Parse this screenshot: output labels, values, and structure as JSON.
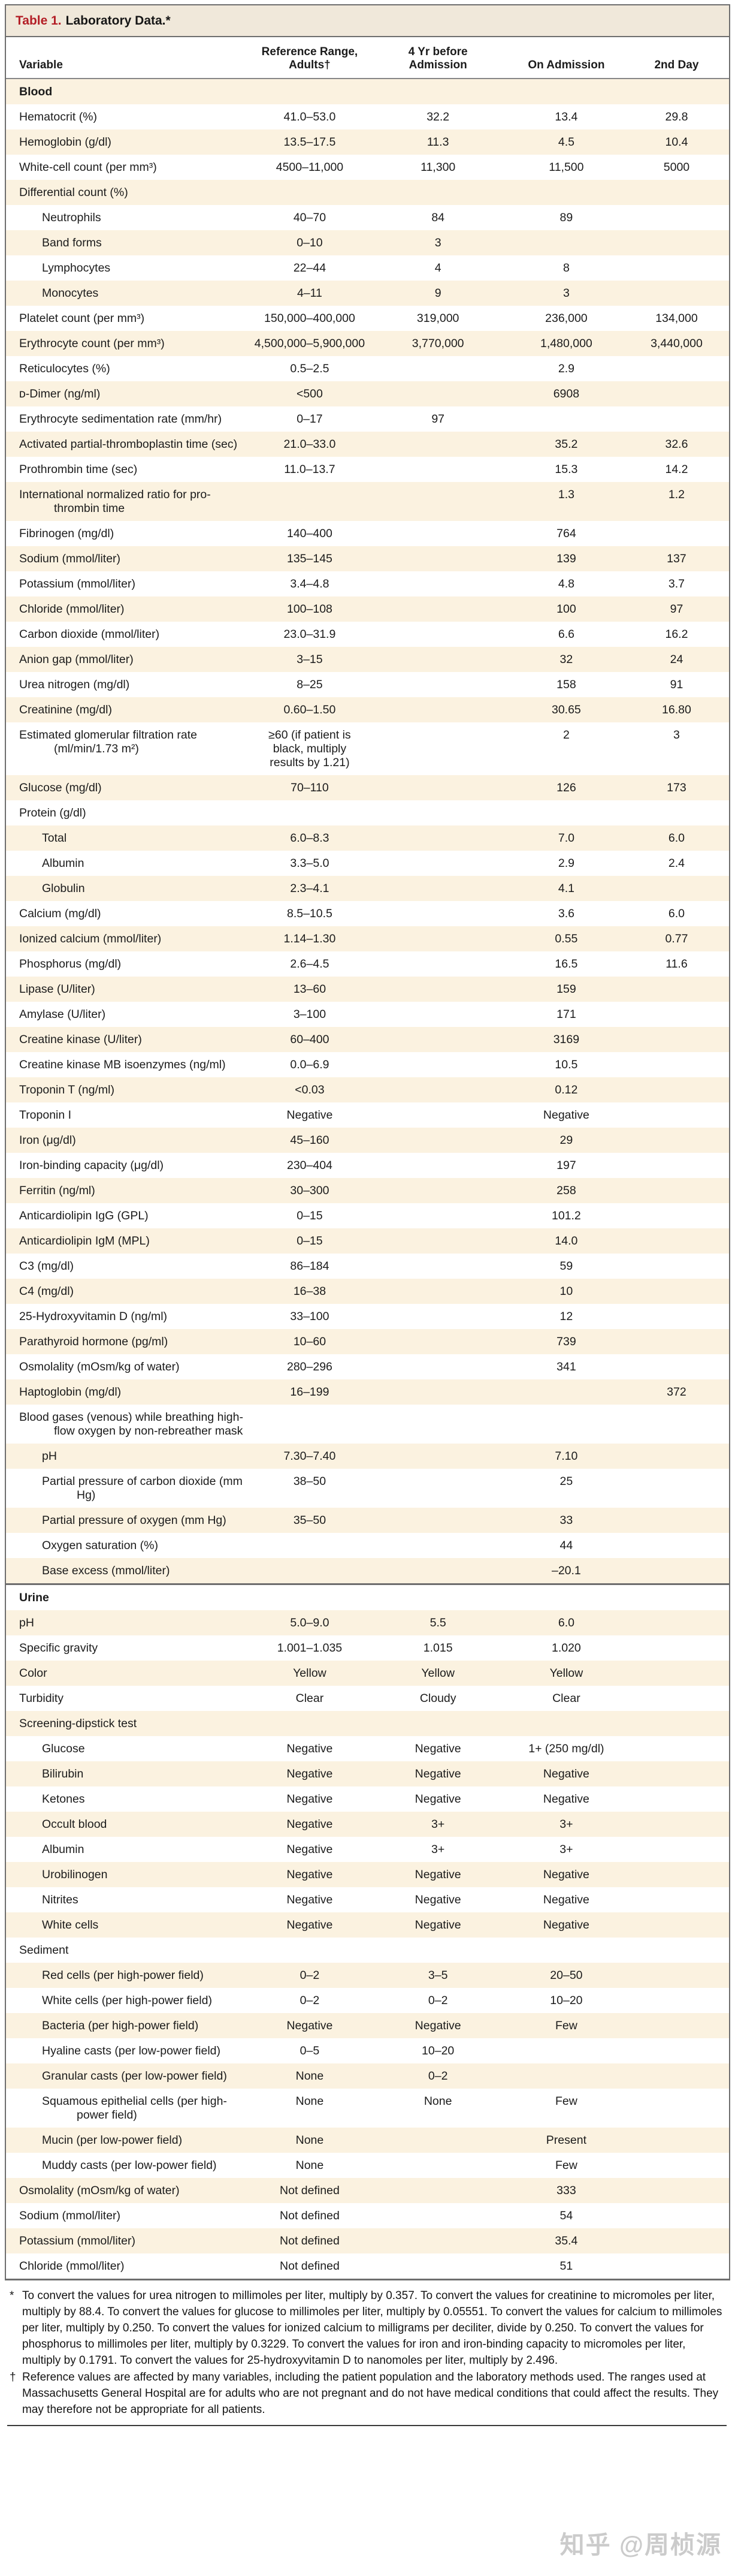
{
  "colors": {
    "accent_red": "#b31e26",
    "titlebar_bg": "#f0e8da",
    "row_stripe": "#fbf2e0",
    "frame_border": "#6e6e6e",
    "watermark_gray": "#cbcbcb"
  },
  "table": {
    "title": {
      "label": "Table 1.",
      "text": "Laboratory Data.*"
    },
    "columns": [
      "Variable",
      "Reference Range,\nAdults†",
      "4 Yr before\nAdmission",
      "On Admission",
      "2nd Day"
    ],
    "rows": [
      {
        "label": "Blood",
        "style": "section",
        "indent": false,
        "values": [
          "",
          "",
          "",
          ""
        ]
      },
      {
        "label": "Hematocrit (%)",
        "style": "data",
        "indent": false,
        "values": [
          "41.0–53.0",
          "32.2",
          "13.4",
          "29.8"
        ]
      },
      {
        "label": "Hemoglobin (g/dl)",
        "style": "data",
        "indent": false,
        "values": [
          "13.5–17.5",
          "11.3",
          "4.5",
          "10.4"
        ]
      },
      {
        "label": "White-cell count (per mm³)",
        "style": "data",
        "indent": false,
        "values": [
          "4500–11,000",
          "11,300",
          "11,500",
          "5000"
        ]
      },
      {
        "label": "Differential count (%)",
        "style": "group",
        "indent": false,
        "values": [
          "",
          "",
          "",
          ""
        ]
      },
      {
        "label": "Neutrophils",
        "style": "data",
        "indent": true,
        "values": [
          "40–70",
          "84",
          "89",
          ""
        ]
      },
      {
        "label": "Band forms",
        "style": "data",
        "indent": true,
        "values": [
          "0–10",
          "3",
          "",
          ""
        ]
      },
      {
        "label": "Lymphocytes",
        "style": "data",
        "indent": true,
        "values": [
          "22–44",
          "4",
          "8",
          ""
        ]
      },
      {
        "label": "Monocytes",
        "style": "data",
        "indent": true,
        "values": [
          "4–11",
          "9",
          "3",
          ""
        ]
      },
      {
        "label": "Platelet count (per mm³)",
        "style": "data",
        "indent": false,
        "values": [
          "150,000–400,000",
          "319,000",
          "236,000",
          "134,000"
        ]
      },
      {
        "label": "Erythrocyte count (per mm³)",
        "style": "data",
        "indent": false,
        "values": [
          "4,500,000–5,900,000",
          "3,770,000",
          "1,480,000",
          "3,440,000"
        ]
      },
      {
        "label": "Reticulocytes (%)",
        "style": "data",
        "indent": false,
        "values": [
          "0.5–2.5",
          "",
          "2.9",
          ""
        ]
      },
      {
        "label": "ᴅ-Dimer (ng/ml)",
        "style": "data",
        "indent": false,
        "values": [
          "<500",
          "",
          "6908",
          ""
        ]
      },
      {
        "label": "Erythrocyte sedimentation rate (mm/hr)",
        "style": "data",
        "indent": false,
        "values": [
          "0–17",
          "97",
          "",
          ""
        ]
      },
      {
        "label": "Activated partial-thromboplastin time (sec)",
        "style": "data",
        "indent": false,
        "values": [
          "21.0–33.0",
          "",
          "35.2",
          "32.6"
        ]
      },
      {
        "label": "Prothrombin time (sec)",
        "style": "data",
        "indent": false,
        "values": [
          "11.0–13.7",
          "",
          "15.3",
          "14.2"
        ]
      },
      {
        "label": "International normalized ratio for pro-thrombin time",
        "style": "data",
        "indent": false,
        "values": [
          "",
          "",
          "1.3",
          "1.2"
        ]
      },
      {
        "label": "Fibrinogen (mg/dl)",
        "style": "data",
        "indent": false,
        "values": [
          "140–400",
          "",
          "764",
          ""
        ]
      },
      {
        "label": "Sodium (mmol/liter)",
        "style": "data",
        "indent": false,
        "values": [
          "135–145",
          "",
          "139",
          "137"
        ]
      },
      {
        "label": "Potassium (mmol/liter)",
        "style": "data",
        "indent": false,
        "values": [
          "3.4–4.8",
          "",
          "4.8",
          "3.7"
        ]
      },
      {
        "label": "Chloride (mmol/liter)",
        "style": "data",
        "indent": false,
        "values": [
          "100–108",
          "",
          "100",
          "97"
        ]
      },
      {
        "label": "Carbon dioxide (mmol/liter)",
        "style": "data",
        "indent": false,
        "values": [
          "23.0–31.9",
          "",
          "6.6",
          "16.2"
        ]
      },
      {
        "label": "Anion gap (mmol/liter)",
        "style": "data",
        "indent": false,
        "values": [
          "3–15",
          "",
          "32",
          "24"
        ]
      },
      {
        "label": "Urea nitrogen (mg/dl)",
        "style": "data",
        "indent": false,
        "values": [
          "8–25",
          "",
          "158",
          "91"
        ]
      },
      {
        "label": "Creatinine (mg/dl)",
        "style": "data",
        "indent": false,
        "values": [
          "0.60–1.50",
          "",
          "30.65",
          "16.80"
        ]
      },
      {
        "label": "Estimated glomerular filtration rate (ml/min/1.73 m²)",
        "style": "data",
        "indent": false,
        "values": [
          "≥60 (if patient is black, multiply results by 1.21)",
          "",
          "2",
          "3"
        ]
      },
      {
        "label": "Glucose (mg/dl)",
        "style": "data",
        "indent": false,
        "values": [
          "70–110",
          "",
          "126",
          "173"
        ]
      },
      {
        "label": "Protein (g/dl)",
        "style": "group",
        "indent": false,
        "values": [
          "",
          "",
          "",
          ""
        ]
      },
      {
        "label": "Total",
        "style": "data",
        "indent": true,
        "values": [
          "6.0–8.3",
          "",
          "7.0",
          "6.0"
        ]
      },
      {
        "label": "Albumin",
        "style": "data",
        "indent": true,
        "values": [
          "3.3–5.0",
          "",
          "2.9",
          "2.4"
        ]
      },
      {
        "label": "Globulin",
        "style": "data",
        "indent": true,
        "values": [
          "2.3–4.1",
          "",
          "4.1",
          ""
        ]
      },
      {
        "label": "Calcium (mg/dl)",
        "style": "data",
        "indent": false,
        "values": [
          "8.5–10.5",
          "",
          "3.6",
          "6.0"
        ]
      },
      {
        "label": "Ionized calcium (mmol/liter)",
        "style": "data",
        "indent": false,
        "values": [
          "1.14–1.30",
          "",
          "0.55",
          "0.77"
        ]
      },
      {
        "label": "Phosphorus (mg/dl)",
        "style": "data",
        "indent": false,
        "values": [
          "2.6–4.5",
          "",
          "16.5",
          "11.6"
        ]
      },
      {
        "label": "Lipase (U/liter)",
        "style": "data",
        "indent": false,
        "values": [
          "13–60",
          "",
          "159",
          ""
        ]
      },
      {
        "label": "Amylase (U/liter)",
        "style": "data",
        "indent": false,
        "values": [
          "3–100",
          "",
          "171",
          ""
        ]
      },
      {
        "label": "Creatine kinase (U/liter)",
        "style": "data",
        "indent": false,
        "values": [
          "60–400",
          "",
          "3169",
          ""
        ]
      },
      {
        "label": "Creatine kinase MB isoenzymes (ng/ml)",
        "style": "data",
        "indent": false,
        "values": [
          "0.0–6.9",
          "",
          "10.5",
          ""
        ]
      },
      {
        "label": "Troponin T (ng/ml)",
        "style": "data",
        "indent": false,
        "values": [
          "<0.03",
          "",
          "0.12",
          ""
        ]
      },
      {
        "label": "Troponin I",
        "style": "data",
        "indent": false,
        "values": [
          "Negative",
          "",
          "Negative",
          ""
        ]
      },
      {
        "label": "Iron (μg/dl)",
        "style": "data",
        "indent": false,
        "values": [
          "45–160",
          "",
          "29",
          ""
        ]
      },
      {
        "label": "Iron-binding capacity (μg/dl)",
        "style": "data",
        "indent": false,
        "values": [
          "230–404",
          "",
          "197",
          ""
        ]
      },
      {
        "label": "Ferritin (ng/ml)",
        "style": "data",
        "indent": false,
        "values": [
          "30–300",
          "",
          "258",
          ""
        ]
      },
      {
        "label": "Anticardiolipin IgG (GPL)",
        "style": "data",
        "indent": false,
        "values": [
          "0–15",
          "",
          "101.2",
          ""
        ]
      },
      {
        "label": "Anticardiolipin IgM (MPL)",
        "style": "data",
        "indent": false,
        "values": [
          "0–15",
          "",
          "14.0",
          ""
        ]
      },
      {
        "label": "C3 (mg/dl)",
        "style": "data",
        "indent": false,
        "values": [
          "86–184",
          "",
          "59",
          ""
        ]
      },
      {
        "label": "C4 (mg/dl)",
        "style": "data",
        "indent": false,
        "values": [
          "16–38",
          "",
          "10",
          ""
        ]
      },
      {
        "label": "25-Hydroxyvitamin D (ng/ml)",
        "style": "data",
        "indent": false,
        "values": [
          "33–100",
          "",
          "12",
          ""
        ]
      },
      {
        "label": "Parathyroid hormone (pg/ml)",
        "style": "data",
        "indent": false,
        "values": [
          "10–60",
          "",
          "739",
          ""
        ]
      },
      {
        "label": "Osmolality (mOsm/kg of water)",
        "style": "data",
        "indent": false,
        "values": [
          "280–296",
          "",
          "341",
          ""
        ]
      },
      {
        "label": "Haptoglobin (mg/dl)",
        "style": "data",
        "indent": false,
        "values": [
          "16–199",
          "",
          "",
          "372"
        ]
      },
      {
        "label": "Blood gases (venous) while breathing high-flow oxygen by non-rebreather mask",
        "style": "group",
        "indent": false,
        "values": [
          "",
          "",
          "",
          ""
        ]
      },
      {
        "label": "pH",
        "style": "data",
        "indent": true,
        "values": [
          "7.30–7.40",
          "",
          "7.10",
          ""
        ]
      },
      {
        "label": "Partial pressure of carbon dioxide (mm Hg)",
        "style": "data",
        "indent": true,
        "values": [
          "38–50",
          "",
          "25",
          ""
        ]
      },
      {
        "label": "Partial pressure of oxygen (mm Hg)",
        "style": "data",
        "indent": true,
        "values": [
          "35–50",
          "",
          "33",
          ""
        ]
      },
      {
        "label": "Oxygen saturation (%)",
        "style": "data",
        "indent": true,
        "values": [
          "",
          "",
          "44",
          ""
        ]
      },
      {
        "label": "Base excess (mmol/liter)",
        "style": "data",
        "indent": true,
        "values": [
          "",
          "",
          "–20.1",
          ""
        ]
      },
      {
        "label": "Urine",
        "style": "section",
        "indent": false,
        "divider": true,
        "values": [
          "",
          "",
          "",
          ""
        ]
      },
      {
        "label": "pH",
        "style": "data",
        "indent": false,
        "values": [
          "5.0–9.0",
          "5.5",
          "6.0",
          ""
        ]
      },
      {
        "label": "Specific gravity",
        "style": "data",
        "indent": false,
        "values": [
          "1.001–1.035",
          "1.015",
          "1.020",
          ""
        ]
      },
      {
        "label": "Color",
        "style": "data",
        "indent": false,
        "values": [
          "Yellow",
          "Yellow",
          "Yellow",
          ""
        ]
      },
      {
        "label": "Turbidity",
        "style": "data",
        "indent": false,
        "values": [
          "Clear",
          "Cloudy",
          "Clear",
          ""
        ]
      },
      {
        "label": "Screening-dipstick test",
        "style": "group",
        "indent": false,
        "values": [
          "",
          "",
          "",
          ""
        ]
      },
      {
        "label": "Glucose",
        "style": "data",
        "indent": true,
        "values": [
          "Negative",
          "Negative",
          "1+ (250 mg/dl)",
          ""
        ]
      },
      {
        "label": "Bilirubin",
        "style": "data",
        "indent": true,
        "values": [
          "Negative",
          "Negative",
          "Negative",
          ""
        ]
      },
      {
        "label": "Ketones",
        "style": "data",
        "indent": true,
        "values": [
          "Negative",
          "Negative",
          "Negative",
          ""
        ]
      },
      {
        "label": "Occult blood",
        "style": "data",
        "indent": true,
        "values": [
          "Negative",
          "3+",
          "3+",
          ""
        ]
      },
      {
        "label": "Albumin",
        "style": "data",
        "indent": true,
        "values": [
          "Negative",
          "3+",
          "3+",
          ""
        ]
      },
      {
        "label": "Urobilinogen",
        "style": "data",
        "indent": true,
        "values": [
          "Negative",
          "Negative",
          "Negative",
          ""
        ]
      },
      {
        "label": "Nitrites",
        "style": "data",
        "indent": true,
        "values": [
          "Negative",
          "Negative",
          "Negative",
          ""
        ]
      },
      {
        "label": "White cells",
        "style": "data",
        "indent": true,
        "values": [
          "Negative",
          "Negative",
          "Negative",
          ""
        ]
      },
      {
        "label": "Sediment",
        "style": "group",
        "indent": false,
        "values": [
          "",
          "",
          "",
          ""
        ]
      },
      {
        "label": "Red cells (per high-power field)",
        "style": "data",
        "indent": true,
        "values": [
          "0–2",
          "3–5",
          "20–50",
          ""
        ]
      },
      {
        "label": "White cells (per high-power field)",
        "style": "data",
        "indent": true,
        "values": [
          "0–2",
          "0–2",
          "10–20",
          ""
        ]
      },
      {
        "label": "Bacteria (per high-power field)",
        "style": "data",
        "indent": true,
        "values": [
          "Negative",
          "Negative",
          "Few",
          ""
        ]
      },
      {
        "label": "Hyaline casts (per low-power field)",
        "style": "data",
        "indent": true,
        "values": [
          "0–5",
          "10–20",
          "",
          ""
        ]
      },
      {
        "label": "Granular casts (per low-power field)",
        "style": "data",
        "indent": true,
        "values": [
          "None",
          "0–2",
          "",
          ""
        ]
      },
      {
        "label": "Squamous epithelial cells (per high-power field)",
        "style": "data",
        "indent": true,
        "values": [
          "None",
          "None",
          "Few",
          ""
        ]
      },
      {
        "label": "Mucin (per low-power field)",
        "style": "data",
        "indent": true,
        "values": [
          "None",
          "",
          "Present",
          ""
        ]
      },
      {
        "label": "Muddy casts (per low-power field)",
        "style": "data",
        "indent": true,
        "values": [
          "None",
          "",
          "Few",
          ""
        ]
      },
      {
        "label": "Osmolality (mOsm/kg of water)",
        "style": "data",
        "indent": false,
        "values": [
          "Not defined",
          "",
          "333",
          ""
        ]
      },
      {
        "label": "Sodium (mmol/liter)",
        "style": "data",
        "indent": false,
        "values": [
          "Not defined",
          "",
          "54",
          ""
        ]
      },
      {
        "label": "Potassium (mmol/liter)",
        "style": "data",
        "indent": false,
        "values": [
          "Not defined",
          "",
          "35.4",
          ""
        ]
      },
      {
        "label": "Chloride (mmol/liter)",
        "style": "data",
        "indent": false,
        "values": [
          "Not defined",
          "",
          "51",
          ""
        ]
      }
    ]
  },
  "footnotes": [
    {
      "marker": "*",
      "text": "To convert the values for urea nitrogen to millimoles per liter, multiply by 0.357. To convert the values for creatinine to micromoles per liter, multiply by 88.4. To convert the values for glucose to millimoles per liter, multiply by 0.05551. To convert the values for calcium to millimoles per liter, multiply by 0.250. To convert the values for ionized calcium to milligrams per deciliter, divide by 0.250. To convert the values for phosphorus to millimoles per liter, multiply by 0.3229. To convert the values for iron and iron-binding capacity to micromoles per liter, multiply by 0.1791. To convert the values for 25-hydroxyvitamin D to nanomoles per liter, multiply by 2.496."
    },
    {
      "marker": "†",
      "text": "Reference values are affected by many variables, including the patient population and the laboratory methods used. The ranges used at Massachusetts General Hospital are for adults who are not pregnant and do not have medical conditions that could affect the results. They may therefore not be appropriate for all patients."
    }
  ],
  "watermark": "知乎 @周桢源"
}
